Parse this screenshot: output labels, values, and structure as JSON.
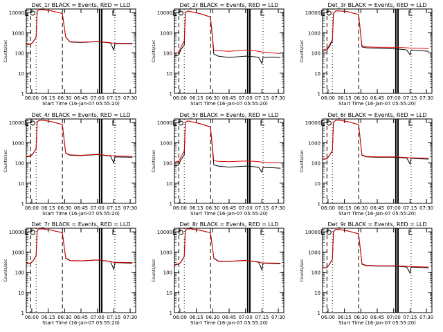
{
  "figure": {
    "x_ticks": [
      "06:00",
      "06:15",
      "06:30",
      "06:45",
      "07:00",
      "07:15",
      "07:30"
    ],
    "y_ticks": [
      "1",
      "10",
      "100",
      "1000",
      "10000"
    ],
    "ylabel": "Counts/sec",
    "xlabel": "Start Time (16-Jan-07 05:55:20)"
  },
  "colors": {
    "events": "#000000",
    "lld": "#e00000",
    "axis": "#000000",
    "background": "#ffffff"
  },
  "chart_data": [
    {
      "type": "line",
      "title": "Det_1r BLACK = Events, RED = LLD",
      "xlabel": "Start Time (16-Jan-07 05:55:20)",
      "ylabel": "Counts/sec",
      "y_scale": "log",
      "ylim": [
        1,
        15000
      ],
      "xlim": [
        "05:55",
        "07:35"
      ],
      "x": [
        "05:55",
        "05:59",
        "06:01",
        "06:04",
        "06:05",
        "06:07",
        "06:10",
        "06:18",
        "06:28",
        "06:31",
        "06:35",
        "06:45",
        "07:00",
        "07:08",
        "07:12",
        "07:15",
        "07:16",
        "07:25",
        "07:32"
      ],
      "series": [
        {
          "name": "BLACK = Events",
          "values": [
            260,
            270,
            330,
            600,
            12000,
            14000,
            14000,
            12000,
            9000,
            600,
            350,
            330,
            360,
            330,
            310,
            140,
            290,
            285,
            280
          ]
        },
        {
          "name": "RED = LLD",
          "values": [
            270,
            280,
            340,
            620,
            12000,
            14000,
            14000,
            12000,
            9000,
            620,
            360,
            340,
            370,
            340,
            320,
            300,
            300,
            300,
            295
          ]
        }
      ]
    },
    {
      "type": "line",
      "title": "Det_2r BLACK = Events, RED = LLD",
      "xlabel": "Start Time (16-Jan-07 05:55:20)",
      "ylabel": "Counts/sec",
      "y_scale": "log",
      "ylim": [
        1,
        15000
      ],
      "xlim": [
        "05:55",
        "07:35"
      ],
      "x": [
        "05:55",
        "05:59",
        "06:01",
        "06:04",
        "06:05",
        "06:07",
        "06:10",
        "06:18",
        "06:28",
        "06:31",
        "06:35",
        "06:45",
        "07:00",
        "07:08",
        "07:12",
        "07:15",
        "07:16",
        "07:25",
        "07:32"
      ],
      "series": [
        {
          "name": "BLACK = Events",
          "values": [
            70,
            80,
            150,
            250,
            10000,
            12000,
            11000,
            9000,
            6000,
            90,
            70,
            60,
            70,
            65,
            60,
            30,
            60,
            62,
            60
          ]
        },
        {
          "name": "RED = LLD",
          "values": [
            95,
            105,
            200,
            400,
            10000,
            12000,
            11000,
            9000,
            6000,
            140,
            130,
            120,
            140,
            130,
            120,
            110,
            110,
            100,
            95
          ]
        }
      ]
    },
    {
      "type": "line",
      "title": "Det_3r BLACK = Events, RED = LLD",
      "xlabel": "Start Time (16-Jan-07 05:55:20)",
      "ylabel": "Counts/sec",
      "y_scale": "log",
      "ylim": [
        1,
        15000
      ],
      "xlim": [
        "05:55",
        "07:35"
      ],
      "x": [
        "05:55",
        "05:59",
        "06:01",
        "06:04",
        "06:05",
        "06:07",
        "06:10",
        "06:18",
        "06:28",
        "06:31",
        "06:35",
        "06:45",
        "07:00",
        "07:08",
        "07:12",
        "07:15",
        "07:16",
        "07:25",
        "07:32"
      ],
      "series": [
        {
          "name": "BLACK = Events",
          "values": [
            120,
            140,
            200,
            400,
            9000,
            12000,
            12000,
            11000,
            8000,
            200,
            180,
            170,
            160,
            150,
            140,
            80,
            140,
            130,
            120
          ]
        },
        {
          "name": "RED = LLD",
          "values": [
            140,
            160,
            230,
            450,
            9000,
            12000,
            12000,
            11000,
            8000,
            230,
            200,
            190,
            190,
            185,
            180,
            175,
            175,
            170,
            165
          ]
        }
      ]
    },
    {
      "type": "line",
      "title": "Det_4r BLACK = Events, RED = LLD",
      "xlabel": "Start Time (16-Jan-07 05:55:20)",
      "ylabel": "Counts/sec",
      "y_scale": "log",
      "ylim": [
        1,
        15000
      ],
      "xlim": [
        "05:55",
        "07:35"
      ],
      "x": [
        "05:55",
        "05:59",
        "06:01",
        "06:04",
        "06:05",
        "06:07",
        "06:10",
        "06:18",
        "06:28",
        "06:31",
        "06:35",
        "06:45",
        "07:00",
        "07:08",
        "07:12",
        "07:15",
        "07:16",
        "07:25",
        "07:32"
      ],
      "series": [
        {
          "name": "BLACK = Events",
          "values": [
            200,
            220,
            280,
            500,
            11000,
            13000,
            13000,
            11000,
            8000,
            300,
            240,
            230,
            260,
            230,
            220,
            100,
            200,
            195,
            190
          ]
        },
        {
          "name": "RED = LLD",
          "values": [
            210,
            230,
            290,
            520,
            11000,
            13000,
            13000,
            11000,
            8000,
            310,
            250,
            240,
            270,
            240,
            230,
            220,
            220,
            215,
            210
          ]
        }
      ]
    },
    {
      "type": "line",
      "title": "Det_5r BLACK = Events, RED = LLD",
      "xlabel": "Start Time (16-Jan-07 05:55:20)",
      "ylabel": "Counts/sec",
      "y_scale": "log",
      "ylim": [
        1,
        15000
      ],
      "xlim": [
        "05:55",
        "07:35"
      ],
      "x": [
        "05:55",
        "05:59",
        "06:01",
        "06:04",
        "06:05",
        "06:07",
        "06:10",
        "06:18",
        "06:28",
        "06:31",
        "06:35",
        "06:45",
        "07:00",
        "07:08",
        "07:12",
        "07:15",
        "07:16",
        "07:25",
        "07:32"
      ],
      "series": [
        {
          "name": "BLACK = Events",
          "values": [
            70,
            80,
            150,
            250,
            10000,
            12000,
            11000,
            9000,
            6000,
            80,
            70,
            62,
            70,
            65,
            60,
            35,
            60,
            58,
            55
          ]
        },
        {
          "name": "RED = LLD",
          "values": [
            110,
            120,
            200,
            400,
            10000,
            12000,
            11000,
            9000,
            6000,
            130,
            120,
            115,
            125,
            120,
            115,
            110,
            110,
            105,
            100
          ]
        }
      ]
    },
    {
      "type": "line",
      "title": "Det_6r BLACK = Events, RED = LLD",
      "xlabel": "Start Time (16-Jan-07 05:55:20)",
      "ylabel": "Counts/sec",
      "y_scale": "log",
      "ylim": [
        1,
        15000
      ],
      "xlim": [
        "05:55",
        "07:35"
      ],
      "x": [
        "05:55",
        "05:59",
        "06:01",
        "06:04",
        "06:05",
        "06:07",
        "06:10",
        "06:18",
        "06:28",
        "06:31",
        "06:35",
        "06:45",
        "07:00",
        "07:08",
        "07:12",
        "07:15",
        "07:16",
        "07:25",
        "07:32"
      ],
      "series": [
        {
          "name": "BLACK = Events",
          "values": [
            150,
            160,
            220,
            400,
            10000,
            13000,
            13000,
            11000,
            8000,
            240,
            200,
            190,
            190,
            180,
            175,
            90,
            170,
            160,
            155
          ]
        },
        {
          "name": "RED = LLD",
          "values": [
            155,
            165,
            230,
            420,
            10000,
            13000,
            13000,
            11000,
            8000,
            250,
            210,
            200,
            200,
            190,
            185,
            180,
            180,
            175,
            170
          ]
        }
      ]
    },
    {
      "type": "line",
      "title": "Det_7r BLACK = Events, RED = LLD",
      "xlabel": "Start Time (16-Jan-07 05:55:20)",
      "ylabel": "Counts/sec",
      "y_scale": "log",
      "ylim": [
        1,
        15000
      ],
      "xlim": [
        "05:55",
        "07:35"
      ],
      "x": [
        "05:55",
        "05:59",
        "06:01",
        "06:04",
        "06:05",
        "06:07",
        "06:10",
        "06:18",
        "06:28",
        "06:31",
        "06:35",
        "06:45",
        "07:00",
        "07:08",
        "07:12",
        "07:15",
        "07:16",
        "07:25",
        "07:32"
      ],
      "series": [
        {
          "name": "BLACK = Events",
          "values": [
            260,
            280,
            350,
            650,
            12000,
            14000,
            14000,
            12000,
            9000,
            500,
            370,
            360,
            400,
            360,
            330,
            140,
            300,
            290,
            280
          ]
        },
        {
          "name": "RED = LLD",
          "values": [
            270,
            290,
            360,
            670,
            12000,
            14000,
            14000,
            12000,
            9000,
            520,
            380,
            370,
            410,
            370,
            340,
            310,
            310,
            305,
            300
          ]
        }
      ]
    },
    {
      "type": "line",
      "title": "Det_8r BLACK = Events, RED = LLD",
      "xlabel": "Start Time (16-Jan-07 05:55:20)",
      "ylabel": "Counts/sec",
      "y_scale": "log",
      "ylim": [
        1,
        15000
      ],
      "xlim": [
        "05:55",
        "07:35"
      ],
      "x": [
        "05:55",
        "05:59",
        "06:01",
        "06:04",
        "06:05",
        "06:07",
        "06:10",
        "06:18",
        "06:28",
        "06:31",
        "06:35",
        "06:45",
        "07:00",
        "07:08",
        "07:12",
        "07:15",
        "07:16",
        "07:25",
        "07:32"
      ],
      "series": [
        {
          "name": "BLACK = Events",
          "values": [
            230,
            250,
            320,
            600,
            12000,
            14000,
            14000,
            12000,
            9000,
            500,
            350,
            340,
            380,
            340,
            310,
            130,
            280,
            270,
            260
          ]
        },
        {
          "name": "RED = LLD",
          "values": [
            240,
            260,
            330,
            620,
            12000,
            14000,
            14000,
            12000,
            9000,
            520,
            360,
            350,
            390,
            350,
            320,
            290,
            290,
            285,
            280
          ]
        }
      ]
    },
    {
      "type": "line",
      "title": "Det_9r BLACK = Events, RED = LLD",
      "xlabel": "Start Time (16-Jan-07 05:55:20)",
      "ylabel": "Counts/sec",
      "y_scale": "log",
      "ylim": [
        1,
        15000
      ],
      "xlim": [
        "05:55",
        "07:35"
      ],
      "x": [
        "05:55",
        "05:59",
        "06:01",
        "06:04",
        "06:05",
        "06:07",
        "06:10",
        "06:18",
        "06:28",
        "06:31",
        "06:35",
        "06:45",
        "07:00",
        "07:08",
        "07:12",
        "07:15",
        "07:16",
        "07:25",
        "07:32"
      ],
      "series": [
        {
          "name": "BLACK = Events",
          "values": [
            160,
            170,
            230,
            420,
            10000,
            13000,
            13000,
            11000,
            8000,
            250,
            210,
            200,
            200,
            190,
            180,
            90,
            180,
            170,
            165
          ]
        },
        {
          "name": "RED = LLD",
          "values": [
            165,
            175,
            240,
            440,
            10000,
            13000,
            13000,
            11000,
            8000,
            260,
            220,
            210,
            210,
            200,
            195,
            190,
            190,
            185,
            180
          ]
        }
      ]
    }
  ]
}
